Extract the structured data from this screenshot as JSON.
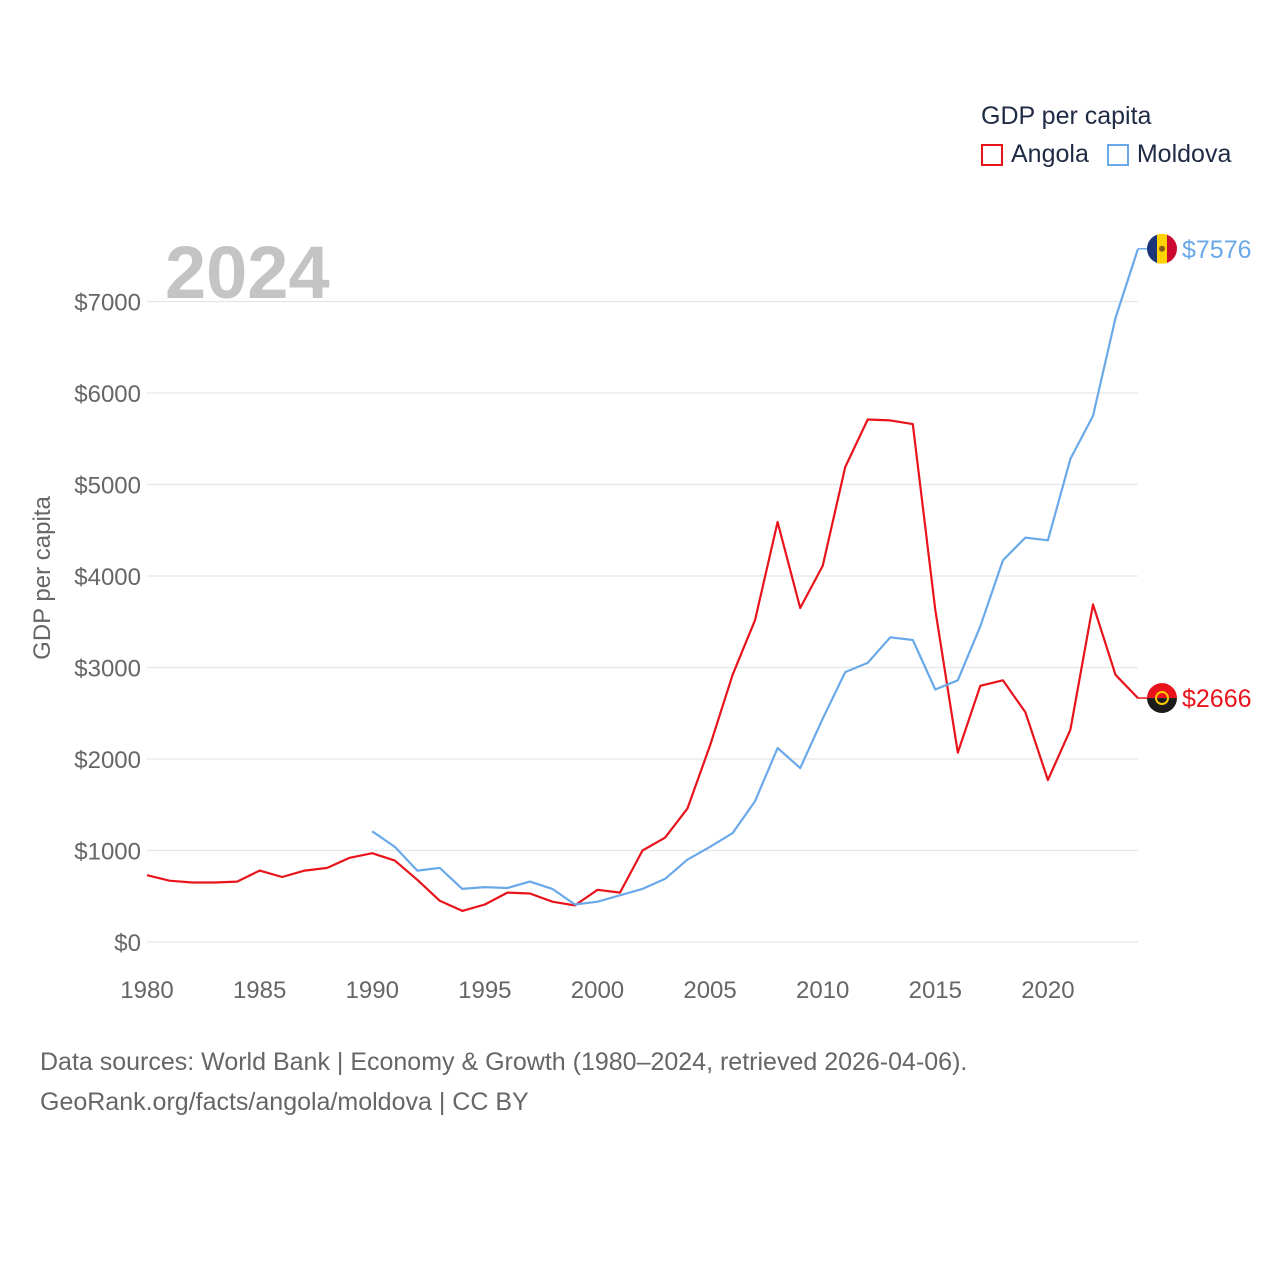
{
  "legend": {
    "title": "GDP per capita",
    "items": [
      {
        "name": "Angola",
        "color": "#e8131b"
      },
      {
        "name": "Moldova",
        "color": "#6aa9e9"
      }
    ]
  },
  "source": {
    "line1": "Data sources: World Bank | Economy & Growth (1980–2024, retrieved 2026-04-06).",
    "line2": "GeoRank.org/facts/angola/moldova | CC BY"
  },
  "chart_data": {
    "type": "line",
    "year_label": "2024",
    "ylabel": "GDP per capita",
    "xlim": [
      1980,
      2024
    ],
    "ylim": [
      0,
      7700
    ],
    "x_ticks": [
      1980,
      1985,
      1990,
      1995,
      2000,
      2005,
      2010,
      2015,
      2020
    ],
    "y_ticks": [
      0,
      1000,
      2000,
      3000,
      4000,
      5000,
      6000,
      7000
    ],
    "y_tick_labels": [
      "$0",
      "$1000",
      "$2000",
      "$3000",
      "$4000",
      "$5000",
      "$6000",
      "$7000"
    ],
    "grid": true,
    "series": [
      {
        "name": "Angola",
        "color": "#e8131b",
        "end_label": "$2666",
        "x": [
          1980,
          1981,
          1982,
          1983,
          1984,
          1985,
          1986,
          1987,
          1988,
          1989,
          1990,
          1991,
          1992,
          1993,
          1994,
          1995,
          1996,
          1997,
          1998,
          1999,
          2000,
          2001,
          2002,
          2003,
          2004,
          2005,
          2006,
          2007,
          2008,
          2009,
          2010,
          2011,
          2012,
          2013,
          2014,
          2015,
          2016,
          2017,
          2018,
          2019,
          2020,
          2021,
          2022,
          2023,
          2024
        ],
        "values": [
          730,
          670,
          650,
          650,
          660,
          780,
          710,
          780,
          810,
          920,
          970,
          890,
          680,
          450,
          340,
          410,
          540,
          530,
          440,
          400,
          570,
          540,
          1000,
          1140,
          1460,
          2150,
          2920,
          3520,
          4590,
          3650,
          4110,
          5190,
          5710,
          5700,
          5660,
          3630,
          2070,
          2800,
          2860,
          2510,
          1770,
          2320,
          3690,
          2920,
          2666
        ]
      },
      {
        "name": "Moldova",
        "color": "#6aa9e9",
        "end_label": "$7576",
        "x": [
          1990,
          1991,
          1992,
          1993,
          1994,
          1995,
          1996,
          1997,
          1998,
          1999,
          2000,
          2001,
          2002,
          2003,
          2004,
          2005,
          2006,
          2007,
          2008,
          2009,
          2010,
          2011,
          2012,
          2013,
          2014,
          2015,
          2016,
          2017,
          2018,
          2019,
          2020,
          2021,
          2022,
          2023,
          2024
        ],
        "values": [
          1210,
          1040,
          780,
          810,
          580,
          600,
          590,
          660,
          580,
          410,
          440,
          510,
          580,
          690,
          900,
          1040,
          1190,
          1540,
          2120,
          1900,
          2440,
          2950,
          3050,
          3330,
          3300,
          2760,
          2860,
          3450,
          4170,
          4420,
          4390,
          5280,
          5750,
          6820,
          7576
        ]
      }
    ]
  }
}
